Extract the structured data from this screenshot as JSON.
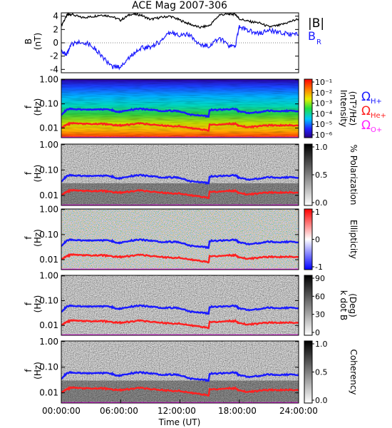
{
  "title": "ACE Mag 2007-306",
  "x_axis": {
    "label": "Time (UT)",
    "ticks": [
      "00:00:00",
      "06:00:00",
      "12:00:00",
      "18:00:00",
      "24:00:00"
    ]
  },
  "colors": {
    "B_total": "#000000",
    "B_R": "#1a1aff",
    "omega_H": "#1a1aff",
    "omega_He": "#ff2020",
    "omega_O": "#ff20ff"
  },
  "chart_data": [
    {
      "type": "line",
      "panel": "magnetic-field",
      "ylabel": [
        "B",
        "(nT)"
      ],
      "yticks": [
        "4",
        "2",
        "0",
        "-2",
        "-4"
      ],
      "ylim": [
        -4.5,
        4.5
      ],
      "xlim_hours": [
        0,
        24
      ],
      "legend": [
        {
          "name": "|B|",
          "color": "#000000"
        },
        {
          "name": "B",
          "sub": "R",
          "color": "#1a1aff"
        }
      ],
      "series": [
        {
          "name": "|B|",
          "x": [
            0,
            0.6,
            1,
            2,
            3,
            4,
            5,
            6,
            7,
            8,
            9,
            10,
            11,
            12,
            13,
            14,
            15,
            16,
            17,
            17.6,
            18,
            19,
            20,
            21,
            22,
            23,
            24
          ],
          "y": [
            2.6,
            4.2,
            4.3,
            3.8,
            3.9,
            4.2,
            4.0,
            3.4,
            4.3,
            4.2,
            3.5,
            3.8,
            4.0,
            3.4,
            2.8,
            2.3,
            2.6,
            4.2,
            4.3,
            4.3,
            3.6,
            3.2,
            3.0,
            2.4,
            2.6,
            3.1,
            3.6
          ]
        },
        {
          "name": "B_R",
          "x": [
            0,
            0.5,
            1,
            2,
            3,
            4,
            5,
            6,
            7,
            8,
            9,
            10,
            11,
            12,
            13,
            14,
            15,
            16,
            17,
            17.6,
            18,
            19,
            20,
            21,
            22,
            23,
            24
          ],
          "y": [
            -1.0,
            -2.0,
            -0.3,
            0.2,
            -0.3,
            -1.8,
            -3.6,
            -3.6,
            -2.0,
            -0.8,
            -0.6,
            0.2,
            1.5,
            1.2,
            1.2,
            -0.4,
            -0.4,
            0.7,
            -0.6,
            -0.4,
            2.4,
            1.8,
            1.4,
            1.9,
            1.5,
            1.3,
            1.2
          ]
        }
      ]
    },
    {
      "type": "heatmap",
      "panel": "power-spectrum",
      "ylabel": [
        "f",
        "(Hz)"
      ],
      "yticks": [
        "1.00",
        "0.10",
        "0.01"
      ],
      "ylim": [
        0.004,
        1.0
      ],
      "colorbar": {
        "label": [
          "Intensity",
          "(nT²/Hz)"
        ],
        "ticks": [
          "10⁻¹",
          "10⁻²",
          "10⁻³",
          "10⁻⁴",
          "10⁻⁵",
          "10⁻⁶"
        ],
        "scale": "rainbow",
        "log": true
      },
      "lines_legend": [
        {
          "name": "Ω",
          "sub": "H+",
          "color": "#1a1aff"
        },
        {
          "name": "Ω",
          "sub": "He+",
          "color": "#ff2020"
        },
        {
          "name": "Ω",
          "sub": "O+",
          "color": "#ff20ff"
        }
      ]
    },
    {
      "type": "heatmap",
      "panel": "polarization",
      "ylabel": [
        "f",
        "(Hz)"
      ],
      "yticks": [
        "1.00",
        "0.10",
        "0.01"
      ],
      "colorbar": {
        "label": [
          "% Polarization"
        ],
        "ticks": [
          "1.0",
          "0.5",
          "0.0"
        ],
        "scale": "gray"
      }
    },
    {
      "type": "heatmap",
      "panel": "ellipticity",
      "ylabel": [
        "f",
        "(Hz)"
      ],
      "yticks": [
        "1.00",
        "0.10",
        "0.01"
      ],
      "colorbar": {
        "label": [
          "Ellipticity"
        ],
        "ticks": [
          "1",
          "0",
          "-1"
        ],
        "scale": "bwr"
      }
    },
    {
      "type": "heatmap",
      "panel": "wave-normal-angle",
      "ylabel": [
        "f",
        "(Hz)"
      ],
      "yticks": [
        "1.00",
        "0.10",
        "0.01"
      ],
      "colorbar": {
        "label": [
          "k dot B",
          "(Deg)"
        ],
        "ticks": [
          "90",
          "60",
          "30",
          "0"
        ],
        "scale": "gray"
      }
    },
    {
      "type": "heatmap",
      "panel": "coherency",
      "ylabel": [
        "f",
        "(Hz)"
      ],
      "yticks": [
        "1.00",
        "0.10",
        "0.01"
      ],
      "colorbar": {
        "label": [
          "Coherency"
        ],
        "ticks": [
          "1.0",
          "0.5",
          "0.0"
        ],
        "scale": "gray"
      }
    }
  ],
  "gyrofrequency_lines": {
    "x_hours": [
      0,
      0.6,
      1,
      2,
      3,
      4,
      5,
      5.5,
      6,
      7,
      8,
      9,
      10,
      11,
      12,
      13,
      14,
      14.9,
      15,
      16,
      17,
      17.6,
      18,
      19,
      20,
      21,
      22,
      23,
      24
    ],
    "omega_H_hz": [
      0.036,
      0.058,
      0.062,
      0.058,
      0.058,
      0.06,
      0.058,
      0.048,
      0.048,
      0.058,
      0.062,
      0.058,
      0.052,
      0.052,
      0.05,
      0.036,
      0.034,
      0.03,
      0.056,
      0.058,
      0.06,
      0.062,
      0.048,
      0.042,
      0.046,
      0.052,
      0.05,
      0.052,
      0.05
    ],
    "omega_He_hz": [
      0.01,
      0.014,
      0.016,
      0.015,
      0.015,
      0.015,
      0.014,
      0.013,
      0.013,
      0.014,
      0.016,
      0.014,
      0.013,
      0.012,
      0.012,
      0.01,
      0.009,
      0.008,
      0.014,
      0.014,
      0.015,
      0.015,
      0.012,
      0.011,
      0.012,
      0.013,
      0.013,
      0.013,
      0.013
    ],
    "omega_O_hz": [
      0.004,
      0.004,
      0.004,
      0.004,
      0.004,
      0.004,
      0.004,
      0.004,
      0.004,
      0.004,
      0.004,
      0.004,
      0.004,
      0.004,
      0.004,
      0.004,
      0.004,
      0.004,
      0.004,
      0.004,
      0.004,
      0.004,
      0.004,
      0.004,
      0.004,
      0.004,
      0.004,
      0.004,
      0.004
    ]
  }
}
